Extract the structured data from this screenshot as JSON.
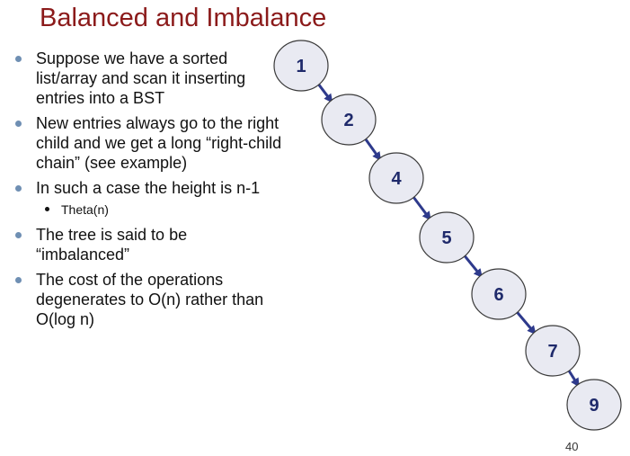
{
  "title": "Balanced and Imbalance",
  "bullets": [
    {
      "level": 1,
      "text": "Suppose we have a sorted list/array and scan it inserting entries into a BST"
    },
    {
      "level": 1,
      "text": "New entries always go to the right child and we get a long “right-child chain” (see example)"
    },
    {
      "level": 1,
      "text": "In such a case the height is n-1"
    },
    {
      "level": 2,
      "text": "Theta(n)"
    },
    {
      "level": 1,
      "text": "The tree is said to be “imbalanced”"
    },
    {
      "level": 1,
      "text": "The cost of the operations degenerates to O(n) rather than O(log n)"
    }
  ],
  "tree": {
    "nodes": [
      "1",
      "2",
      "4",
      "5",
      "6",
      "7",
      "9"
    ],
    "edges": [
      [
        "1",
        "2"
      ],
      [
        "2",
        "4"
      ],
      [
        "4",
        "5"
      ],
      [
        "5",
        "6"
      ],
      [
        "6",
        "7"
      ],
      [
        "7",
        "9"
      ]
    ],
    "node_fill": "#e9eaf2",
    "node_stroke": "#3a3a3a",
    "edge_color": "#2e3a8c"
  },
  "page_number": "40"
}
